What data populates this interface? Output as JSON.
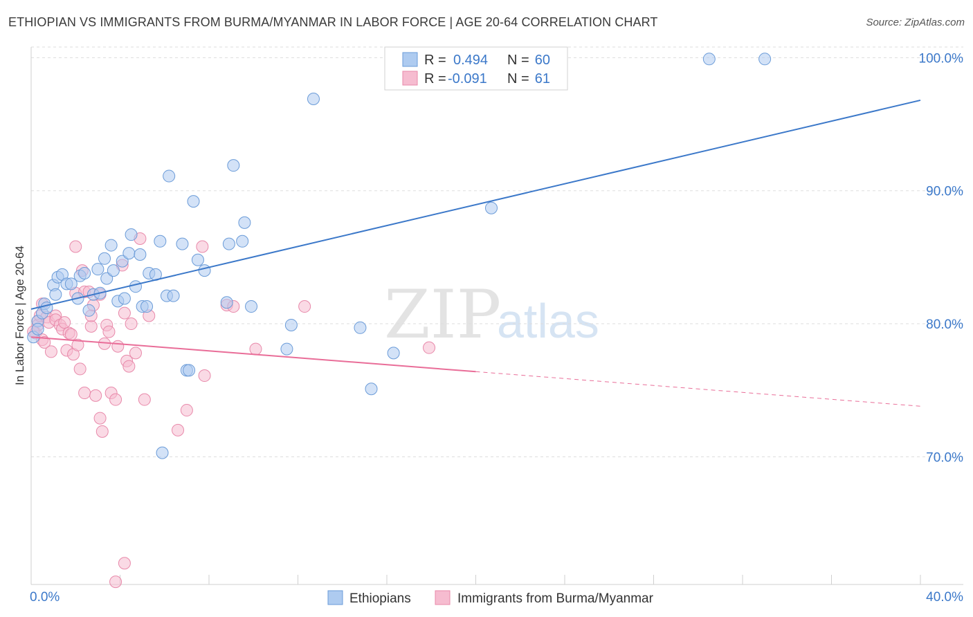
{
  "header": {
    "title": "ETHIOPIAN VS IMMIGRANTS FROM BURMA/MYANMAR IN LABOR FORCE | AGE 20-64 CORRELATION CHART",
    "source": "Source: ZipAtlas.com"
  },
  "watermark": {
    "zip": "ZIP",
    "atlas": "atlas"
  },
  "legend_box": {
    "row1": {
      "r_label": "R =",
      "r_value": "0.494",
      "n_label": "N =",
      "n_value": "60"
    },
    "row2": {
      "r_label": "R =",
      "r_value": "-0.091",
      "n_label": "N =",
      "n_value": "61"
    }
  },
  "bottom_legend": {
    "item1": "Ethiopians",
    "item2": "Immigrants from Burma/Myanmar"
  },
  "colors": {
    "blue_fill": "#aecbf0",
    "blue_stroke": "#6a9bd8",
    "blue_line": "#3b78c9",
    "pink_fill": "#f6bcd0",
    "pink_stroke": "#e889aa",
    "pink_line": "#e96d98",
    "tick_text": "#3b78c9",
    "grid": "#dddddd"
  },
  "chart_data": {
    "type": "scatter",
    "title": "ETHIOPIAN VS IMMIGRANTS FROM BURMA/MYANMAR IN LABOR FORCE | AGE 20-64 CORRELATION CHART",
    "xlabel": "",
    "ylabel": "In Labor Force | Age 20-64",
    "xlim": [
      0,
      40
    ],
    "ylim": [
      60.4,
      100.8
    ],
    "x_tick_labels": [
      "0.0%",
      "40.0%"
    ],
    "y_ticks": [
      70,
      80,
      90,
      100
    ],
    "y_tick_labels": [
      "70.0%",
      "80.0%",
      "90.0%",
      "100.0%"
    ],
    "series": [
      {
        "name": "Ethiopians",
        "R": 0.494,
        "N": 60,
        "trend": {
          "x": [
            0,
            40
          ],
          "y": [
            81.1,
            96.8
          ]
        },
        "points": [
          [
            0.1,
            79.0
          ],
          [
            0.3,
            80.2
          ],
          [
            0.3,
            79.6
          ],
          [
            0.5,
            80.8
          ],
          [
            0.6,
            81.5
          ],
          [
            0.7,
            81.2
          ],
          [
            1.0,
            82.9
          ],
          [
            1.1,
            82.2
          ],
          [
            1.2,
            83.5
          ],
          [
            1.4,
            83.7
          ],
          [
            1.6,
            83.0
          ],
          [
            1.8,
            83.0
          ],
          [
            2.1,
            81.9
          ],
          [
            2.2,
            83.6
          ],
          [
            2.4,
            83.8
          ],
          [
            2.6,
            81.0
          ],
          [
            2.8,
            82.2
          ],
          [
            3.0,
            84.1
          ],
          [
            3.1,
            82.3
          ],
          [
            3.3,
            84.9
          ],
          [
            3.4,
            83.4
          ],
          [
            3.6,
            85.9
          ],
          [
            3.7,
            84.0
          ],
          [
            3.9,
            81.7
          ],
          [
            4.1,
            84.7
          ],
          [
            4.2,
            81.9
          ],
          [
            4.4,
            85.3
          ],
          [
            4.5,
            86.7
          ],
          [
            4.7,
            82.8
          ],
          [
            4.9,
            85.2
          ],
          [
            5.0,
            81.3
          ],
          [
            5.2,
            81.3
          ],
          [
            5.3,
            83.8
          ],
          [
            5.6,
            83.7
          ],
          [
            5.8,
            86.2
          ],
          [
            5.9,
            70.3
          ],
          [
            6.1,
            82.1
          ],
          [
            6.2,
            91.1
          ],
          [
            6.4,
            82.1
          ],
          [
            6.8,
            86.0
          ],
          [
            7.0,
            76.5
          ],
          [
            7.1,
            76.5
          ],
          [
            7.3,
            89.2
          ],
          [
            7.5,
            84.8
          ],
          [
            7.8,
            84.0
          ],
          [
            8.8,
            81.6
          ],
          [
            8.9,
            86.0
          ],
          [
            9.1,
            91.9
          ],
          [
            9.5,
            86.2
          ],
          [
            9.6,
            87.6
          ],
          [
            9.9,
            81.3
          ],
          [
            11.5,
            78.1
          ],
          [
            11.7,
            79.9
          ],
          [
            12.7,
            96.9
          ],
          [
            14.8,
            79.7
          ],
          [
            15.3,
            75.1
          ],
          [
            16.3,
            77.8
          ],
          [
            20.7,
            88.7
          ],
          [
            30.5,
            99.9
          ],
          [
            33.0,
            99.9
          ]
        ]
      },
      {
        "name": "Immigrants from Burma/Myanmar",
        "R": -0.091,
        "N": 61,
        "trend": {
          "x": [
            0,
            20
          ],
          "y": [
            79.0,
            76.4
          ]
        },
        "trend_dashed": {
          "x": [
            20,
            40
          ],
          "y": [
            76.4,
            73.8
          ]
        },
        "points": [
          [
            0.2,
            79.3
          ],
          [
            0.3,
            80.2
          ],
          [
            0.3,
            79.9
          ],
          [
            0.4,
            80.6
          ],
          [
            0.5,
            81.5
          ],
          [
            0.5,
            78.8
          ],
          [
            0.6,
            78.6
          ],
          [
            0.7,
            80.5
          ],
          [
            0.8,
            80.1
          ],
          [
            0.9,
            77.9
          ],
          [
            1.1,
            80.6
          ],
          [
            1.1,
            80.3
          ],
          [
            1.3,
            79.9
          ],
          [
            1.4,
            79.6
          ],
          [
            1.5,
            80.1
          ],
          [
            1.6,
            78.0
          ],
          [
            1.7,
            79.3
          ],
          [
            1.8,
            79.2
          ],
          [
            1.9,
            77.7
          ],
          [
            2.0,
            82.3
          ],
          [
            2.1,
            78.4
          ],
          [
            2.0,
            85.8
          ],
          [
            2.2,
            76.6
          ],
          [
            2.3,
            84.0
          ],
          [
            2.4,
            74.8
          ],
          [
            2.4,
            82.4
          ],
          [
            2.6,
            82.4
          ],
          [
            2.7,
            79.8
          ],
          [
            2.7,
            80.6
          ],
          [
            2.8,
            81.4
          ],
          [
            2.9,
            74.6
          ],
          [
            3.1,
            82.2
          ],
          [
            3.1,
            72.9
          ],
          [
            3.2,
            71.9
          ],
          [
            3.3,
            78.5
          ],
          [
            3.4,
            79.9
          ],
          [
            3.5,
            79.4
          ],
          [
            3.6,
            74.8
          ],
          [
            3.8,
            74.3
          ],
          [
            3.8,
            60.6
          ],
          [
            3.9,
            78.3
          ],
          [
            4.1,
            84.4
          ],
          [
            4.2,
            62.0
          ],
          [
            4.2,
            80.8
          ],
          [
            4.3,
            77.2
          ],
          [
            4.4,
            76.8
          ],
          [
            4.5,
            80.0
          ],
          [
            4.7,
            77.8
          ],
          [
            4.9,
            86.4
          ],
          [
            5.1,
            74.3
          ],
          [
            5.3,
            80.6
          ],
          [
            6.6,
            72.0
          ],
          [
            7.0,
            73.5
          ],
          [
            7.8,
            76.1
          ],
          [
            7.7,
            85.8
          ],
          [
            8.8,
            81.4
          ],
          [
            9.1,
            81.3
          ],
          [
            10.1,
            78.1
          ],
          [
            12.3,
            81.3
          ],
          [
            17.9,
            78.2
          ],
          [
            0.1,
            79.4
          ]
        ]
      }
    ]
  }
}
